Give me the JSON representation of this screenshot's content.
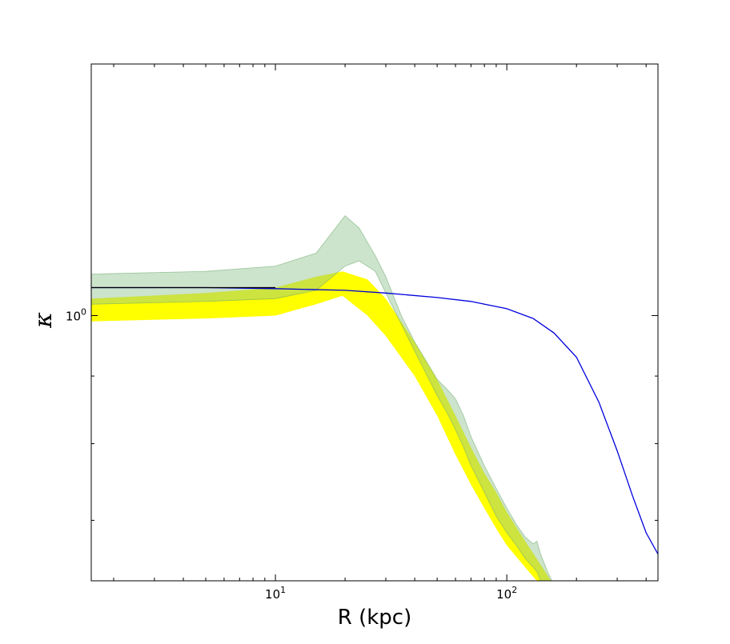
{
  "chart_data": {
    "type": "area",
    "xlabel": "R (kpc)",
    "ylabel": "κ",
    "xscale": "log",
    "yscale": "log",
    "xlim": [
      1.6,
      450
    ],
    "ylim": [
      0.63,
      1.55
    ],
    "grid": false,
    "x_ticks": [
      {
        "value": 10,
        "label": "10",
        "exp": "1"
      },
      {
        "value": 100,
        "label": "10",
        "exp": "2"
      }
    ],
    "y_ticks": [
      {
        "value": 1,
        "label": "10",
        "exp": "0"
      }
    ],
    "colors": {
      "band_yellow": "#ffff00",
      "band_green": "#8fc08f",
      "band_green_edge": "#6aa86a",
      "line_blue": "#0000dd",
      "line_black": "#000000"
    },
    "series": [
      {
        "kind": "band",
        "color": "yellow",
        "x": [
          1.6,
          5,
          10,
          15,
          19.5,
          25,
          30,
          40,
          50,
          60,
          70,
          80,
          90,
          100,
          120,
          140,
          160,
          200
        ],
        "lower": [
          0.99,
          0.995,
          1.0,
          1.02,
          1.035,
          1.0,
          0.965,
          0.9,
          0.84,
          0.785,
          0.745,
          0.715,
          0.69,
          0.67,
          0.645,
          0.625,
          0.605,
          0.58
        ],
        "upper": [
          1.03,
          1.04,
          1.05,
          1.07,
          1.08,
          1.065,
          1.03,
          0.955,
          0.895,
          0.84,
          0.795,
          0.76,
          0.735,
          0.71,
          0.675,
          0.648,
          0.625,
          0.59
        ]
      },
      {
        "kind": "band",
        "color": "green",
        "x": [
          1.6,
          5,
          10,
          15,
          20,
          23,
          27,
          30,
          35,
          40,
          50,
          55,
          60,
          65,
          70,
          80,
          90,
          100,
          110,
          120,
          130,
          135,
          140,
          150,
          160,
          180,
          200
        ],
        "lower": [
          1.02,
          1.025,
          1.03,
          1.045,
          1.09,
          1.1,
          1.08,
          1.04,
          0.985,
          0.94,
          0.87,
          0.845,
          0.82,
          0.795,
          0.77,
          0.735,
          0.705,
          0.685,
          0.67,
          0.655,
          0.645,
          0.64,
          0.63,
          0.615,
          0.6,
          0.585,
          0.57
        ],
        "upper": [
          1.075,
          1.08,
          1.09,
          1.115,
          1.19,
          1.165,
          1.11,
          1.07,
          1.0,
          0.955,
          0.895,
          0.88,
          0.865,
          0.84,
          0.81,
          0.77,
          0.74,
          0.715,
          0.695,
          0.68,
          0.672,
          0.675,
          0.66,
          0.64,
          0.625,
          0.6,
          0.58
        ]
      },
      {
        "kind": "line",
        "color": "blue",
        "x": [
          1.6,
          5,
          10,
          20,
          30,
          50,
          70,
          100,
          130,
          160,
          200,
          250,
          300,
          350,
          400,
          450
        ],
        "y": [
          1.05,
          1.05,
          1.048,
          1.045,
          1.04,
          1.032,
          1.025,
          1.012,
          0.995,
          0.97,
          0.93,
          0.86,
          0.79,
          0.73,
          0.685,
          0.66
        ]
      },
      {
        "kind": "line",
        "color": "black",
        "x": [
          1.6,
          10
        ],
        "y": [
          1.05,
          1.05
        ]
      }
    ]
  }
}
